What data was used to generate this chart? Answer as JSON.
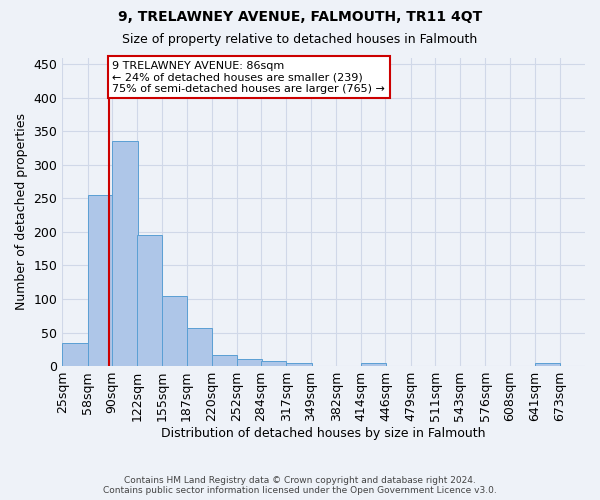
{
  "title": "9, TRELAWNEY AVENUE, FALMOUTH, TR11 4QT",
  "subtitle": "Size of property relative to detached houses in Falmouth",
  "xlabel": "Distribution of detached houses by size in Falmouth",
  "ylabel": "Number of detached properties",
  "footer_line1": "Contains HM Land Registry data © Crown copyright and database right 2024.",
  "footer_line2": "Contains public sector information licensed under the Open Government Licence v3.0.",
  "bar_edges": [
    25,
    58,
    90,
    122,
    155,
    187,
    220,
    252,
    284,
    317,
    349,
    382,
    414,
    446,
    479,
    511,
    543,
    576,
    608,
    641,
    673
  ],
  "bar_heights": [
    35,
    255,
    335,
    195,
    105,
    57,
    17,
    10,
    7,
    4,
    0,
    0,
    4,
    0,
    0,
    0,
    0,
    0,
    0,
    4
  ],
  "bar_color": "#aec6e8",
  "bar_edge_color": "#5a9fd4",
  "grid_color": "#d0d8e8",
  "property_size": 86,
  "property_line_color": "#cc0000",
  "annotation_text": "9 TRELAWNEY AVENUE: 86sqm\n← 24% of detached houses are smaller (239)\n75% of semi-detached houses are larger (765) →",
  "annotation_box_color": "#ffffff",
  "annotation_box_edge_color": "#cc0000",
  "ylim": [
    0,
    460
  ],
  "background_color": "#eef2f8",
  "tick_labels": [
    "25sqm",
    "58sqm",
    "90sqm",
    "122sqm",
    "155sqm",
    "187sqm",
    "220sqm",
    "252sqm",
    "284sqm",
    "317sqm",
    "349sqm",
    "382sqm",
    "414sqm",
    "446sqm",
    "479sqm",
    "511sqm",
    "543sqm",
    "576sqm",
    "608sqm",
    "641sqm",
    "673sqm"
  ]
}
